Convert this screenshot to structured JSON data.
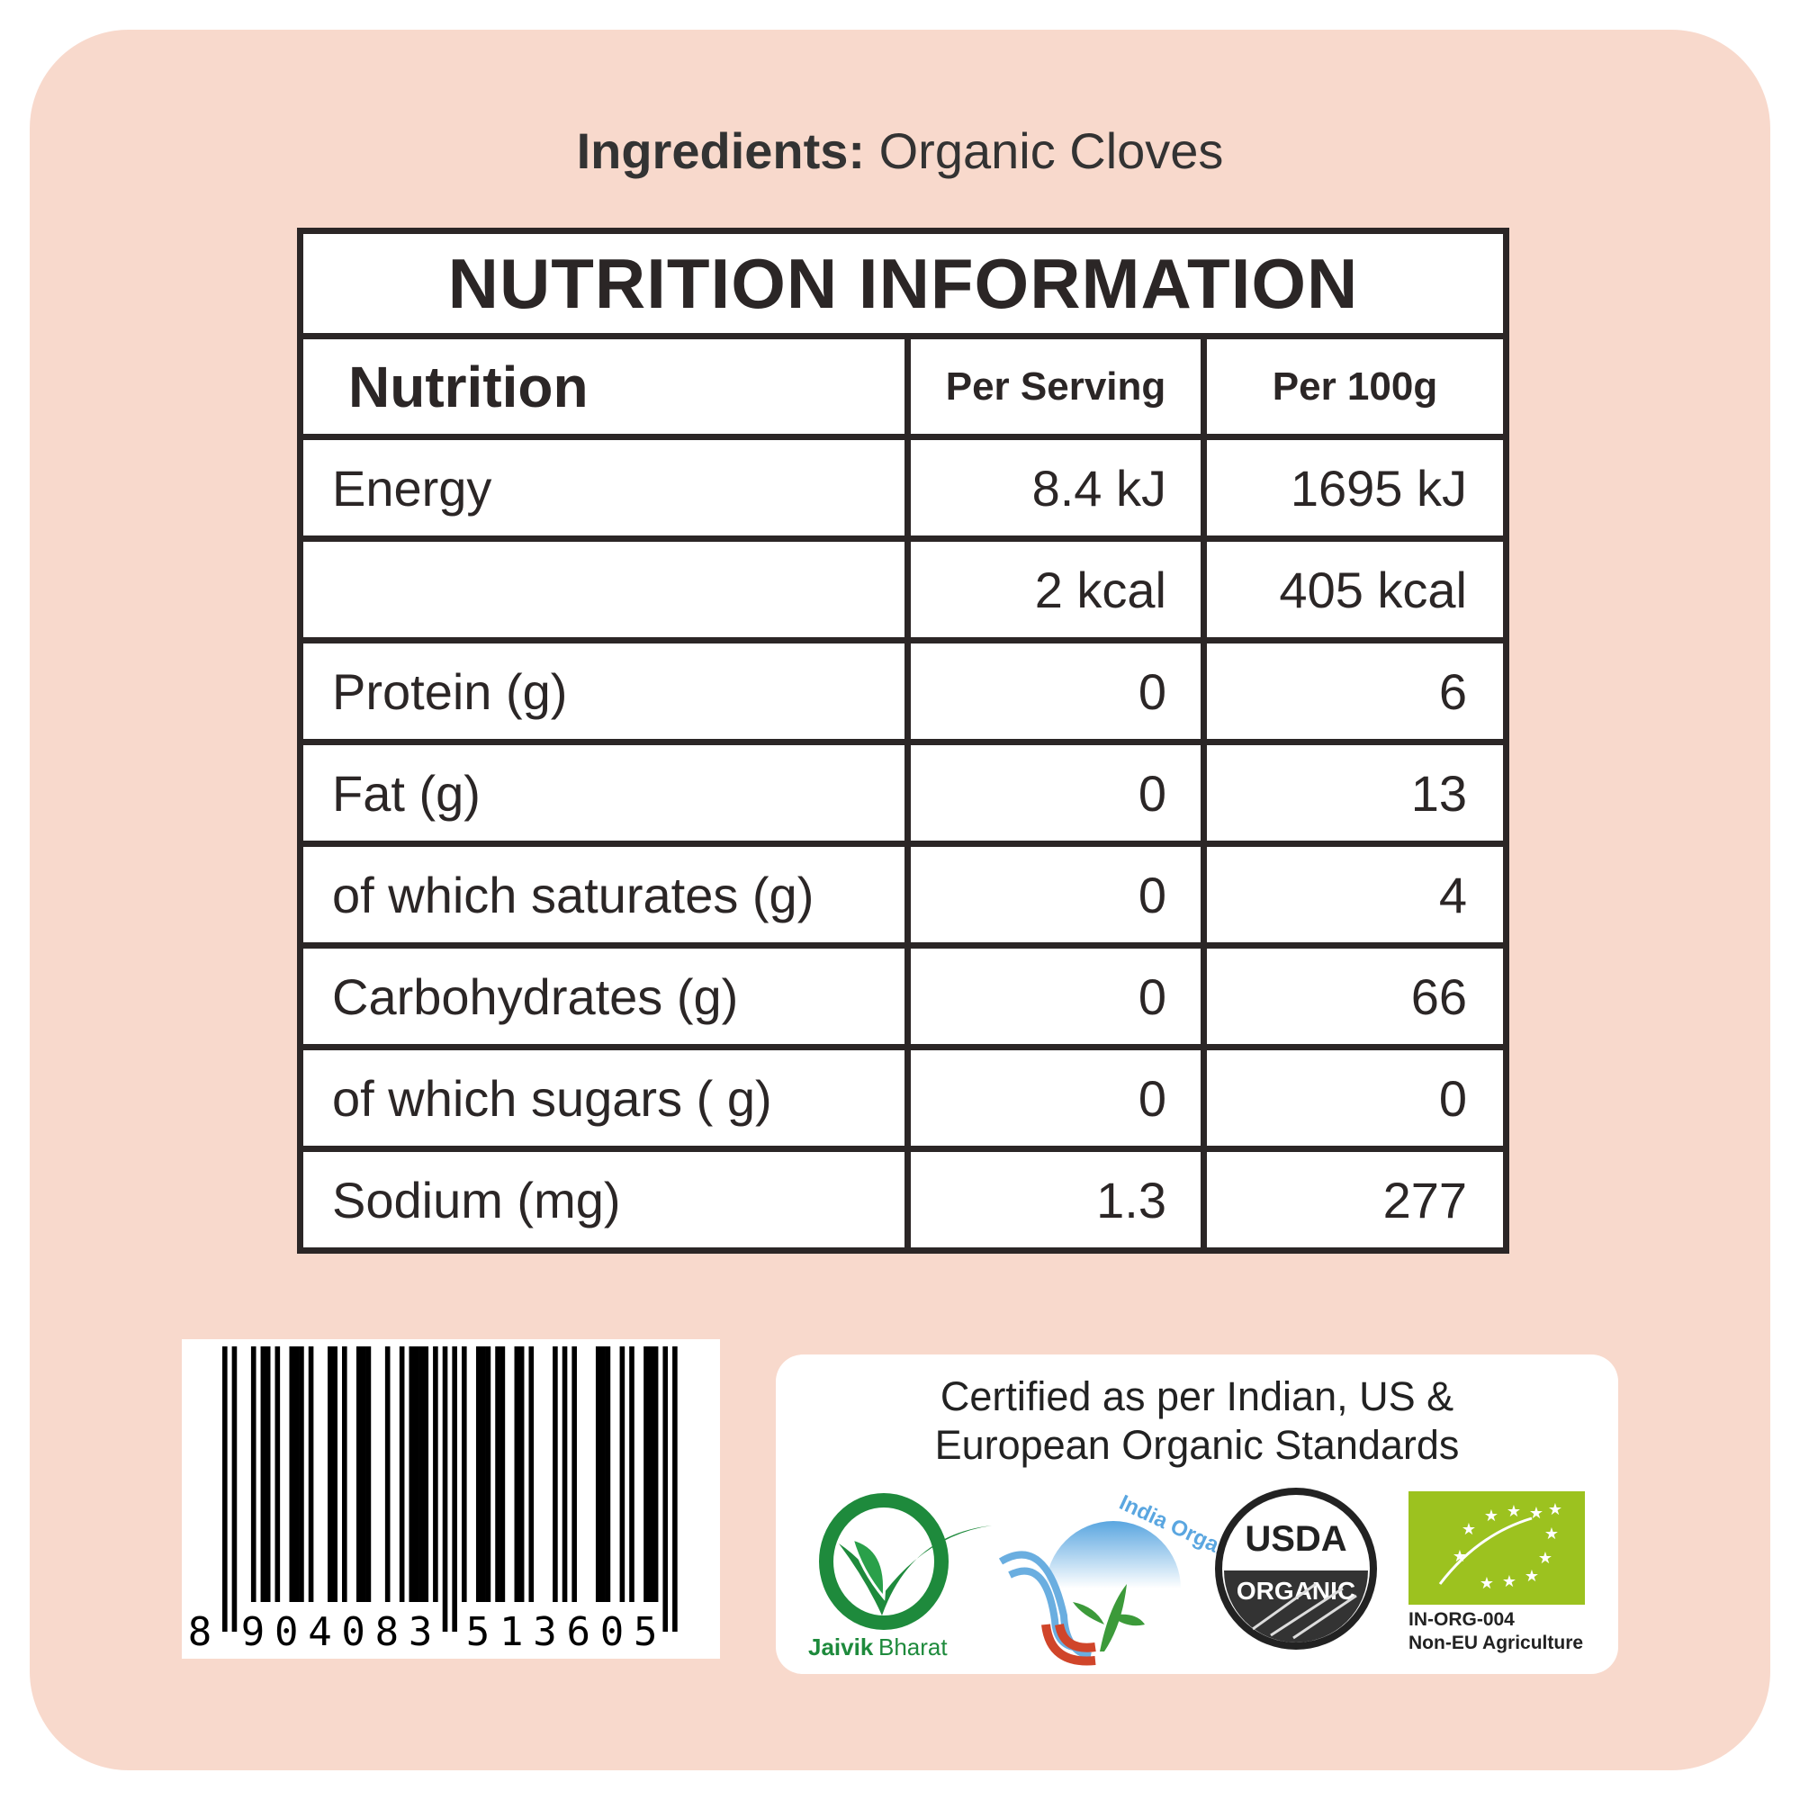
{
  "ingredients": {
    "label": "Ingredients:",
    "value": "Organic Cloves"
  },
  "nutrition": {
    "title": "NUTRITION INFORMATION",
    "headers": [
      "Nutrition",
      "Per Serving",
      "Per 100g"
    ],
    "rows": [
      {
        "name": "Energy",
        "per_serving": "8.4 kJ",
        "per_100g": "1695 kJ"
      },
      {
        "name": "",
        "per_serving": "2 kcal",
        "per_100g": "405 kcal"
      },
      {
        "name": "Protein (g)",
        "per_serving": "0",
        "per_100g": "6"
      },
      {
        "name": "Fat (g)",
        "per_serving": "0",
        "per_100g": "13"
      },
      {
        "name": "of which saturates (g)",
        "per_serving": "0",
        "per_100g": "4"
      },
      {
        "name": "Carbohydrates (g)",
        "per_serving": "0",
        "per_100g": "66"
      },
      {
        "name": "of which sugars ( g)",
        "per_serving": "0",
        "per_100g": "0"
      },
      {
        "name": "Sodium (mg)",
        "per_serving": "1.3",
        "per_100g": "277"
      }
    ]
  },
  "barcode": {
    "digits": "8904083513605"
  },
  "certification": {
    "line1": "Certified as per Indian, US &",
    "line2": "European Organic Standards",
    "logos": {
      "jaivik": {
        "word1": "Jaivik",
        "word2": "Bharat",
        "color": "#1e8a3c"
      },
      "india_organic": {
        "text": "India Organic"
      },
      "usda": {
        "top": "USDA",
        "bottom": "ORGANIC"
      },
      "eu": {
        "code": "IN-ORG-004",
        "note": "Non-EU Agriculture",
        "color": "#9cc21f"
      }
    }
  },
  "colors": {
    "background": "#f8d9cc",
    "table_border": "#2b2626"
  }
}
